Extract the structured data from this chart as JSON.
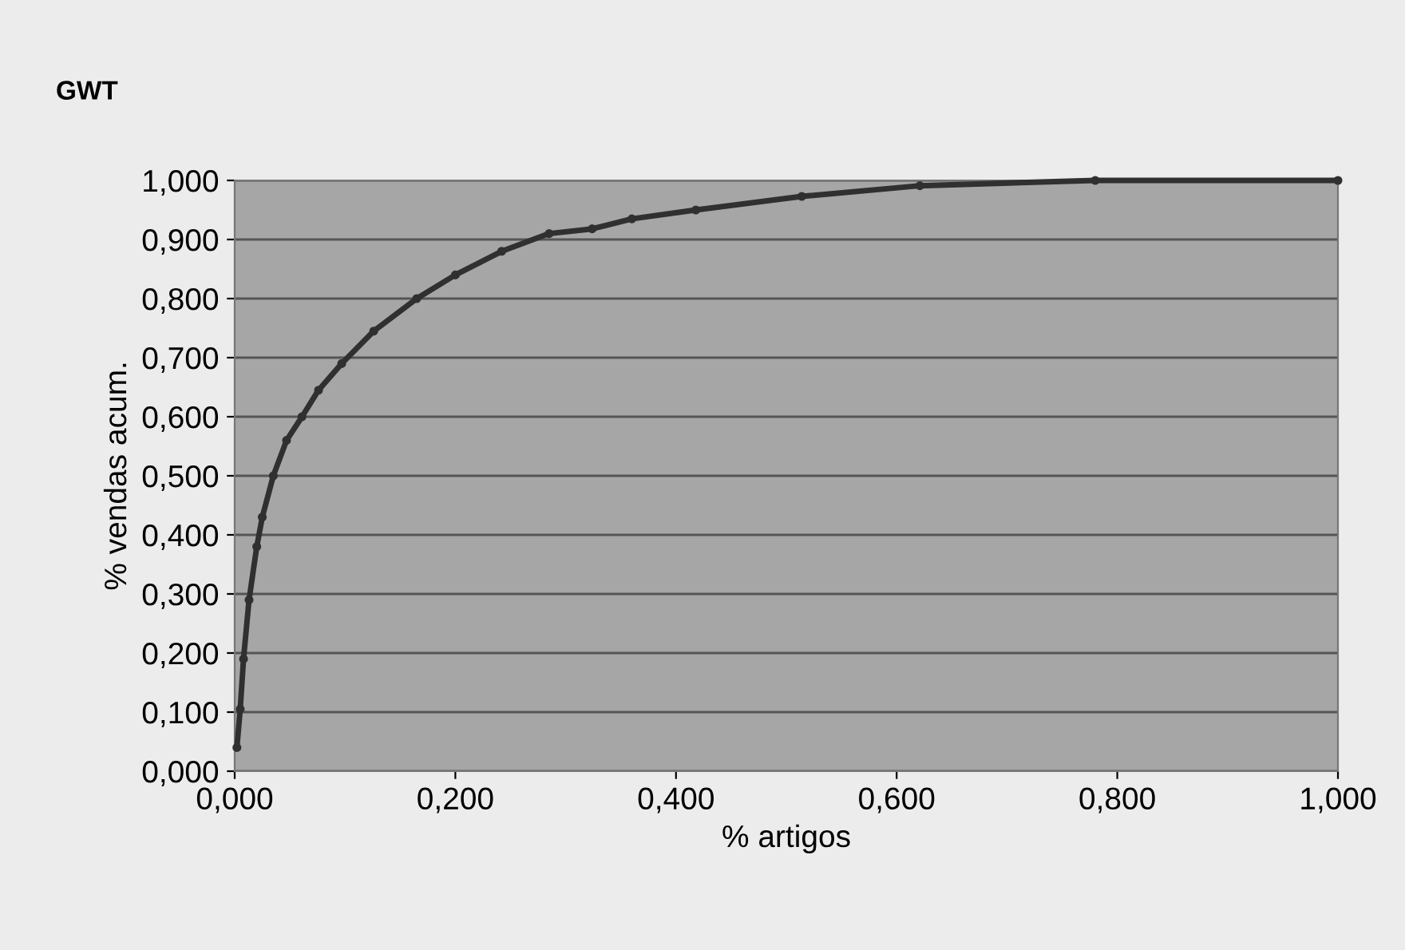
{
  "chart_data": {
    "type": "line",
    "title": "GWT",
    "xlabel": "% artigos",
    "ylabel": "% vendas acum.",
    "x": [
      0.002,
      0.005,
      0.008,
      0.013,
      0.02,
      0.025,
      0.035,
      0.047,
      0.061,
      0.076,
      0.097,
      0.126,
      0.165,
      0.2,
      0.242,
      0.285,
      0.324,
      0.36,
      0.418,
      0.514,
      0.621,
      0.78,
      1.0
    ],
    "series": [
      {
        "color": "#303030",
        "values": [
          0.04,
          0.105,
          0.19,
          0.29,
          0.38,
          0.43,
          0.5,
          0.56,
          0.6,
          0.645,
          0.69,
          0.745,
          0.8,
          0.84,
          0.88,
          0.91,
          0.918,
          0.935,
          0.95,
          0.973,
          0.991,
          1.0,
          1.0
        ]
      }
    ],
    "xlim": [
      0,
      1
    ],
    "ylim": [
      0,
      1
    ],
    "xticks": [
      {
        "value": 0,
        "label": "0,000"
      },
      {
        "value": 0.2,
        "label": "0,200"
      },
      {
        "value": 0.4,
        "label": "0,400"
      },
      {
        "value": 0.6,
        "label": "0,600"
      },
      {
        "value": 0.8,
        "label": "0,800"
      },
      {
        "value": 1,
        "label": "1,000"
      }
    ],
    "yticks": [
      {
        "value": 0,
        "label": "0,000"
      },
      {
        "value": 0.1,
        "label": "0,100"
      },
      {
        "value": 0.2,
        "label": "0,200"
      },
      {
        "value": 0.3,
        "label": "0,300"
      },
      {
        "value": 0.4,
        "label": "0,400"
      },
      {
        "value": 0.5,
        "label": "0,500"
      },
      {
        "value": 0.6,
        "label": "0,600"
      },
      {
        "value": 0.7,
        "label": "0,700"
      },
      {
        "value": 0.8,
        "label": "0,800"
      },
      {
        "value": 0.9,
        "label": "0,900"
      },
      {
        "value": 1,
        "label": "1,000"
      }
    ],
    "grid": "y",
    "marker": "circle",
    "line_style": "solid"
  }
}
